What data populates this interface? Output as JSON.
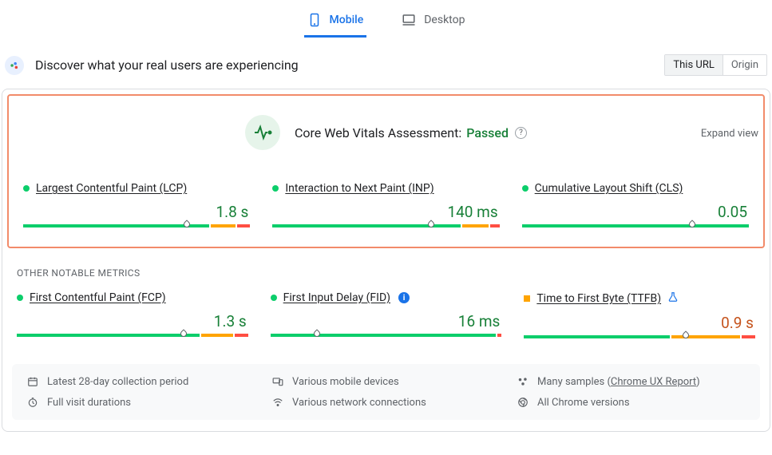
{
  "tabs": {
    "mobile": "Mobile",
    "desktop": "Desktop",
    "active": "mobile"
  },
  "discover": {
    "title": "Discover what your real users are experiencing",
    "toggle": {
      "this_url": "This URL",
      "origin": "Origin",
      "selected": "this_url"
    }
  },
  "assessment": {
    "label": "Core Web Vitals Assessment:",
    "status": "Passed",
    "expand": "Expand view"
  },
  "colors": {
    "good": "#0cce6b",
    "avg": "#ffa400",
    "poor": "#ff4e42",
    "good_text": "#188038",
    "avg_text": "#c5531c",
    "blue": "#1a73e8",
    "hl_border": "#f28b6a"
  },
  "core_metrics": [
    {
      "key": "lcp",
      "name": "Largest Contentful Paint (LCP)",
      "value": "1.8 s",
      "status": "good",
      "dot_shape": "circle",
      "segments": [
        {
          "color": "#0cce6b",
          "pct": 83
        },
        {
          "color": "#ffa400",
          "pct": 11
        },
        {
          "color": "#ff4e42",
          "pct": 6
        }
      ],
      "marker_pct": 72
    },
    {
      "key": "inp",
      "name": "Interaction to Next Paint (INP)",
      "value": "140 ms",
      "status": "good",
      "dot_shape": "circle",
      "segments": [
        {
          "color": "#0cce6b",
          "pct": 84
        },
        {
          "color": "#ffa400",
          "pct": 12
        },
        {
          "color": "#ff4e42",
          "pct": 4
        }
      ],
      "marker_pct": 70
    },
    {
      "key": "cls",
      "name": "Cumulative Layout Shift (CLS)",
      "value": "0.05",
      "status": "good",
      "dot_shape": "circle",
      "segments": [
        {
          "color": "#0cce6b",
          "pct": 100
        }
      ],
      "marker_pct": 75
    }
  ],
  "other_label": "OTHER NOTABLE METRICS",
  "other_metrics": [
    {
      "key": "fcp",
      "name": "First Contentful Paint (FCP)",
      "value": "1.3 s",
      "status": "good",
      "dot_shape": "circle",
      "segments": [
        {
          "color": "#0cce6b",
          "pct": 80
        },
        {
          "color": "#ffa400",
          "pct": 14
        },
        {
          "color": "#ff4e42",
          "pct": 6
        }
      ],
      "marker_pct": 72,
      "extra_icon": null
    },
    {
      "key": "fid",
      "name": "First Input Delay (FID)",
      "value": "16 ms",
      "status": "good",
      "dot_shape": "circle",
      "segments": [
        {
          "color": "#0cce6b",
          "pct": 98
        },
        {
          "color": "#ff4e42",
          "pct": 2
        }
      ],
      "marker_pct": 20,
      "extra_icon": "info"
    },
    {
      "key": "ttfb",
      "name": "Time to First Byte (TTFB)",
      "value": "0.9 s",
      "status": "avg",
      "dot_shape": "square",
      "segments": [
        {
          "color": "#0cce6b",
          "pct": 64
        },
        {
          "color": "#ffa400",
          "pct": 30
        },
        {
          "color": "#ff4e42",
          "pct": 6
        }
      ],
      "marker_pct": 70,
      "extra_icon": "flask"
    }
  ],
  "footer": {
    "period": "Latest 28-day collection period",
    "devices": "Various mobile devices",
    "samples_prefix": "Many samples (",
    "samples_link": "Chrome UX Report",
    "samples_suffix": ")",
    "durations": "Full visit durations",
    "network": "Various network connections",
    "versions": "All Chrome versions"
  }
}
